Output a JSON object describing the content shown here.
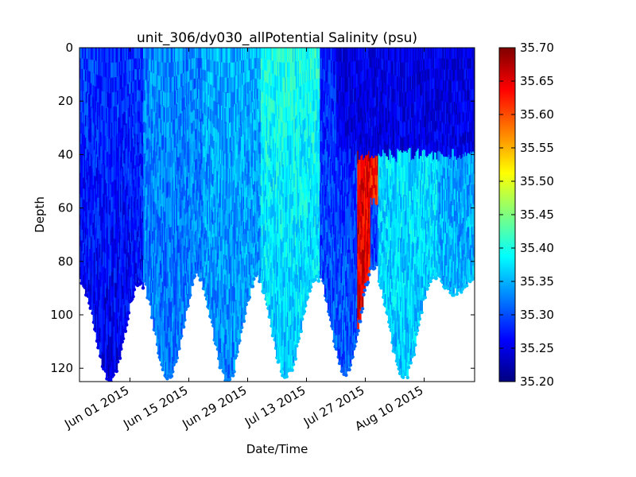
{
  "chart_data": {
    "type": "scatter",
    "title": "unit_306/dy030_allPotential Salinity (psu)",
    "xlabel": "Date/Time",
    "ylabel": "Depth",
    "x_range": [
      "2015-05-20",
      "2015-08-22"
    ],
    "ylim": [
      125,
      0
    ],
    "y_inverted": true,
    "y_ticks": [
      0,
      20,
      40,
      60,
      80,
      100,
      120
    ],
    "x_ticks": [
      {
        "date": "2015-06-01",
        "label": "Jun 01 2015"
      },
      {
        "date": "2015-06-15",
        "label": "Jun 15 2015"
      },
      {
        "date": "2015-06-29",
        "label": "Jun 29 2015"
      },
      {
        "date": "2015-07-13",
        "label": "Jul 13 2015"
      },
      {
        "date": "2015-07-27",
        "label": "Jul 27 2015"
      },
      {
        "date": "2015-08-10",
        "label": "Aug 10 2015"
      }
    ],
    "colorbar": {
      "label": "",
      "colormap": "jet",
      "vmin": 35.2,
      "vmax": 35.7,
      "ticks": [
        "35.20",
        "35.25",
        "35.30",
        "35.35",
        "35.40",
        "35.45",
        "35.50",
        "35.55",
        "35.60",
        "35.65",
        "35.70"
      ]
    },
    "colormap_stops": [
      "#00007f",
      "#0000ff",
      "#007fff",
      "#00ffff",
      "#7fff7f",
      "#ffff00",
      "#ff7f00",
      "#ff0000",
      "#7f0000"
    ],
    "grid": false,
    "dives": [
      {
        "start": "2015-05-20",
        "end": "2015-06-03",
        "max_depth": 124,
        "min_depth": 88,
        "surface_salinity": 35.29,
        "deep_salinity": 35.25
      },
      {
        "start": "2015-06-03",
        "end": "2015-06-17",
        "max_depth": 123,
        "min_depth": 85,
        "surface_salinity": 35.33,
        "deep_salinity": 35.32
      },
      {
        "start": "2015-06-17",
        "end": "2015-07-01",
        "max_depth": 124,
        "min_depth": 86,
        "surface_salinity": 35.35,
        "deep_salinity": 35.33
      },
      {
        "start": "2015-07-01",
        "end": "2015-07-15",
        "max_depth": 123,
        "min_depth": 86,
        "surface_salinity": 35.4,
        "deep_salinity": 35.36
      },
      {
        "start": "2015-07-15",
        "end": "2015-07-29",
        "max_depth": 121,
        "min_depth": 82,
        "surface_salinity": 35.27,
        "deep_salinity": 35.31
      },
      {
        "start": "2015-07-29",
        "end": "2015-08-12",
        "max_depth": 123,
        "min_depth": 85,
        "surface_salinity": 35.38,
        "deep_salinity": 35.36
      },
      {
        "start": "2015-08-12",
        "end": "2015-08-22",
        "max_depth": 91,
        "min_depth": 85,
        "surface_salinity": 35.33,
        "deep_salinity": 35.36
      }
    ],
    "features": [
      {
        "kind": "high_salinity_streak",
        "start": "2015-07-25",
        "end": "2015-07-27",
        "depth_top": 0,
        "depth_bottom": 120,
        "salinity": 35.65
      },
      {
        "kind": "high_salinity_streak",
        "start": "2015-07-28",
        "end": "2015-07-29",
        "depth_top": 25,
        "depth_bottom": 58,
        "salinity": 35.63
      },
      {
        "kind": "low_salinity_layer",
        "start": "2015-07-20",
        "end": "2015-08-22",
        "depth_top": 0,
        "depth_bottom": 40,
        "salinity": 35.22
      }
    ]
  }
}
